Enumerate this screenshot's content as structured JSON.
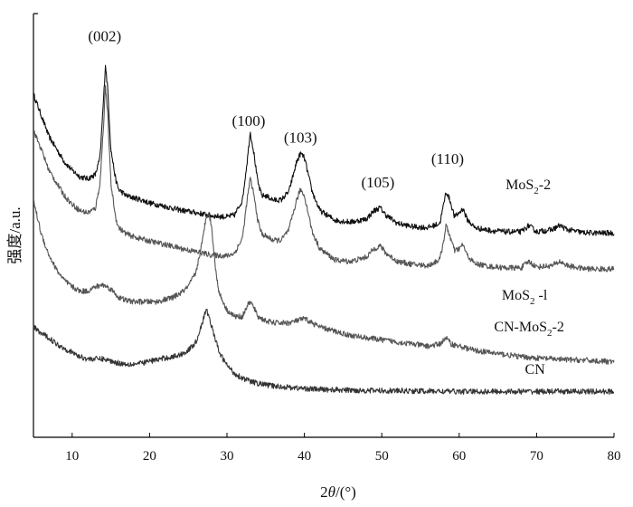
{
  "chart_data": {
    "type": "line",
    "title": "",
    "xlabel_prefix": "2",
    "xlabel_theta": "θ",
    "xlabel_suffix": "/(°)",
    "ylabel": "强度/a.u.",
    "xlim": [
      5,
      80
    ],
    "ylim": [
      0,
      100
    ],
    "yticks_shown": false,
    "grid": false,
    "xticks": [
      "10",
      "20",
      "30",
      "40",
      "50",
      "60",
      "70",
      "80"
    ],
    "peak_labels": [
      {
        "text": "(002)",
        "x": 14.2,
        "y": 93.5
      },
      {
        "text": "(100)",
        "x": 32.8,
        "y": 73.5
      },
      {
        "text": "(103)",
        "x": 39.5,
        "y": 69.5
      },
      {
        "text": "(105)",
        "x": 49.5,
        "y": 59.0
      },
      {
        "text": "(110)",
        "x": 58.5,
        "y": 64.5
      }
    ],
    "series": [
      {
        "label_main": "MoS",
        "label_sub": "2",
        "label_tail": "-2",
        "label_pos": {
          "x": 66,
          "y": 58.5
        },
        "color": "#111111",
        "points": [
          [
            5,
            81
          ],
          [
            6,
            76
          ],
          [
            7,
            71
          ],
          [
            8,
            68
          ],
          [
            9,
            65
          ],
          [
            10,
            63
          ],
          [
            11,
            61.5
          ],
          [
            12,
            61
          ],
          [
            13,
            62
          ],
          [
            13.6,
            66
          ],
          [
            14.0,
            78
          ],
          [
            14.3,
            88
          ],
          [
            14.6,
            82
          ],
          [
            15.0,
            68
          ],
          [
            15.6,
            61
          ],
          [
            16,
            58.5
          ],
          [
            17,
            57
          ],
          [
            18,
            56.5
          ],
          [
            19,
            56
          ],
          [
            20,
            55.3
          ],
          [
            22,
            54.5
          ],
          [
            24,
            53.6
          ],
          [
            26,
            53
          ],
          [
            28,
            52.3
          ],
          [
            30,
            52
          ],
          [
            31,
            52.5
          ],
          [
            32,
            56
          ],
          [
            32.6,
            65
          ],
          [
            33.0,
            72
          ],
          [
            33.4,
            68
          ],
          [
            34,
            60
          ],
          [
            34.5,
            57
          ],
          [
            35,
            57
          ],
          [
            36,
            56
          ],
          [
            37,
            56
          ],
          [
            38,
            58
          ],
          [
            39,
            65
          ],
          [
            39.5,
            67
          ],
          [
            40,
            66
          ],
          [
            40.5,
            62
          ],
          [
            41,
            58
          ],
          [
            42,
            53.5
          ],
          [
            44,
            51.2
          ],
          [
            46,
            50.8
          ],
          [
            48,
            51.5
          ],
          [
            49,
            53.5
          ],
          [
            49.8,
            54.2
          ],
          [
            50.5,
            52.5
          ],
          [
            52,
            50.5
          ],
          [
            54,
            49.7
          ],
          [
            56,
            49.5
          ],
          [
            57.5,
            50.5
          ],
          [
            58.0,
            55
          ],
          [
            58.3,
            58
          ],
          [
            58.8,
            56
          ],
          [
            59.4,
            52
          ],
          [
            60,
            53
          ],
          [
            60.5,
            54
          ],
          [
            61,
            51.5
          ],
          [
            62,
            49.5
          ],
          [
            64,
            48.8
          ],
          [
            66,
            48.5
          ],
          [
            68,
            48.5
          ],
          [
            69,
            50
          ],
          [
            70,
            48.5
          ],
          [
            72,
            49
          ],
          [
            73,
            50
          ],
          [
            74,
            49
          ],
          [
            76,
            48.3
          ],
          [
            78,
            48.2
          ],
          [
            80,
            48.2
          ]
        ]
      },
      {
        "label_main": "MoS",
        "label_sub": "2",
        "label_tail": " -l",
        "label_pos": {
          "x": 65.5,
          "y": 32.5
        },
        "color": "#555555",
        "points": [
          [
            5,
            72.5
          ],
          [
            6,
            68
          ],
          [
            7,
            63
          ],
          [
            8,
            60
          ],
          [
            9,
            57
          ],
          [
            10,
            55
          ],
          [
            11,
            53.5
          ],
          [
            12,
            53
          ],
          [
            13,
            54
          ],
          [
            13.6,
            60
          ],
          [
            14.0,
            72
          ],
          [
            14.3,
            83
          ],
          [
            14.6,
            76
          ],
          [
            15.0,
            60
          ],
          [
            15.6,
            52
          ],
          [
            16,
            49.5
          ],
          [
            17,
            48
          ],
          [
            18,
            47.3
          ],
          [
            19,
            46.8
          ],
          [
            20,
            46.3
          ],
          [
            22,
            45.5
          ],
          [
            24,
            44.6
          ],
          [
            26,
            43.8
          ],
          [
            28,
            43
          ],
          [
            30,
            42.8
          ],
          [
            31,
            43.5
          ],
          [
            32,
            47
          ],
          [
            32.6,
            56
          ],
          [
            33.0,
            61
          ],
          [
            33.4,
            58
          ],
          [
            34,
            51
          ],
          [
            34.5,
            48
          ],
          [
            35,
            47.5
          ],
          [
            36,
            46.5
          ],
          [
            37,
            46.5
          ],
          [
            38,
            49
          ],
          [
            39,
            56
          ],
          [
            39.5,
            58.5
          ],
          [
            40,
            57
          ],
          [
            40.5,
            53
          ],
          [
            41,
            48.5
          ],
          [
            42,
            44.5
          ],
          [
            44,
            41.8
          ],
          [
            46,
            41.5
          ],
          [
            48,
            42.5
          ],
          [
            49,
            44.5
          ],
          [
            49.8,
            45.2
          ],
          [
            50.5,
            43.5
          ],
          [
            52,
            41.5
          ],
          [
            54,
            40.8
          ],
          [
            56,
            40.5
          ],
          [
            57.5,
            42
          ],
          [
            58.0,
            46.5
          ],
          [
            58.3,
            50
          ],
          [
            58.8,
            47.5
          ],
          [
            59.4,
            44
          ],
          [
            60,
            44.5
          ],
          [
            60.5,
            45.5
          ],
          [
            61,
            43
          ],
          [
            62,
            41
          ],
          [
            64,
            40.3
          ],
          [
            66,
            40
          ],
          [
            68,
            40
          ],
          [
            69,
            41.5
          ],
          [
            70,
            40.2
          ],
          [
            72,
            40.5
          ],
          [
            73,
            41.5
          ],
          [
            74,
            40.5
          ],
          [
            76,
            39.8
          ],
          [
            78,
            39.7
          ],
          [
            80,
            39.7
          ]
        ]
      },
      {
        "label_main": "CN-MoS",
        "label_sub": "2",
        "label_tail": "-2",
        "label_pos": {
          "x": 64.5,
          "y": 25.0
        },
        "color": "#555555",
        "points": [
          [
            5,
            56
          ],
          [
            6,
            48
          ],
          [
            7,
            43
          ],
          [
            8,
            39.5
          ],
          [
            9,
            37
          ],
          [
            10,
            35.5
          ],
          [
            11,
            34.5
          ],
          [
            12,
            34.5
          ],
          [
            13,
            35.5
          ],
          [
            14,
            36
          ],
          [
            15,
            35
          ],
          [
            16,
            33
          ],
          [
            17,
            32.3
          ],
          [
            18,
            32
          ],
          [
            19,
            32
          ],
          [
            20,
            32
          ],
          [
            21,
            32
          ],
          [
            22,
            32.5
          ],
          [
            23,
            33
          ],
          [
            24,
            34
          ],
          [
            25,
            35.5
          ],
          [
            26,
            39
          ],
          [
            26.8,
            46
          ],
          [
            27.3,
            52
          ],
          [
            27.6,
            53
          ],
          [
            28.0,
            50
          ],
          [
            28.5,
            40
          ],
          [
            29,
            34
          ],
          [
            30,
            30
          ],
          [
            31,
            28.5
          ],
          [
            32,
            28.5
          ],
          [
            32.6,
            31
          ],
          [
            33,
            32
          ],
          [
            33.5,
            30.5
          ],
          [
            34,
            28.5
          ],
          [
            35,
            27.5
          ],
          [
            36,
            27
          ],
          [
            38,
            27
          ],
          [
            39,
            27.5
          ],
          [
            40,
            28
          ],
          [
            41,
            27
          ],
          [
            42,
            26
          ],
          [
            44,
            25
          ],
          [
            46,
            24
          ],
          [
            48,
            23.5
          ],
          [
            50,
            23
          ],
          [
            52,
            22.5
          ],
          [
            54,
            22
          ],
          [
            56,
            21.5
          ],
          [
            57.5,
            22
          ],
          [
            58.3,
            23.5
          ],
          [
            59,
            22
          ],
          [
            60,
            21.5
          ],
          [
            62,
            20.5
          ],
          [
            64,
            20
          ],
          [
            66,
            19.5
          ],
          [
            68,
            19
          ],
          [
            70,
            18.7
          ],
          [
            72,
            18.5
          ],
          [
            74,
            18.3
          ],
          [
            76,
            18.2
          ],
          [
            78,
            18
          ],
          [
            80,
            17.8
          ]
        ]
      },
      {
        "label_main": "CN",
        "label_sub": "",
        "label_tail": "",
        "label_pos": {
          "x": 68.5,
          "y": 15.0
        },
        "color": "#333333",
        "points": [
          [
            5,
            26
          ],
          [
            6,
            24.5
          ],
          [
            7,
            23.5
          ],
          [
            8,
            22
          ],
          [
            9,
            21
          ],
          [
            10,
            20
          ],
          [
            11,
            19
          ],
          [
            12,
            18.5
          ],
          [
            13,
            18.5
          ],
          [
            14,
            18.5
          ],
          [
            15,
            18
          ],
          [
            16,
            17.5
          ],
          [
            17,
            17.3
          ],
          [
            18,
            17.3
          ],
          [
            19,
            17.5
          ],
          [
            20,
            18
          ],
          [
            21,
            18.3
          ],
          [
            22,
            18.7
          ],
          [
            23,
            19
          ],
          [
            24,
            19.5
          ],
          [
            25,
            20.5
          ],
          [
            26,
            22.5
          ],
          [
            26.8,
            27
          ],
          [
            27.3,
            30
          ],
          [
            27.6,
            29
          ],
          [
            28.2,
            25
          ],
          [
            29,
            20
          ],
          [
            30,
            17
          ],
          [
            31,
            15
          ],
          [
            32,
            14
          ],
          [
            33,
            13.2
          ],
          [
            34,
            12.7
          ],
          [
            35,
            12.4
          ],
          [
            36,
            12.1
          ],
          [
            38,
            11.8
          ],
          [
            40,
            11.5
          ],
          [
            42,
            11.3
          ],
          [
            44,
            11.2
          ],
          [
            46,
            11.1
          ],
          [
            50,
            11
          ],
          [
            55,
            10.9
          ],
          [
            60,
            10.8
          ],
          [
            70,
            10.8
          ],
          [
            80,
            10.8
          ]
        ]
      }
    ]
  }
}
